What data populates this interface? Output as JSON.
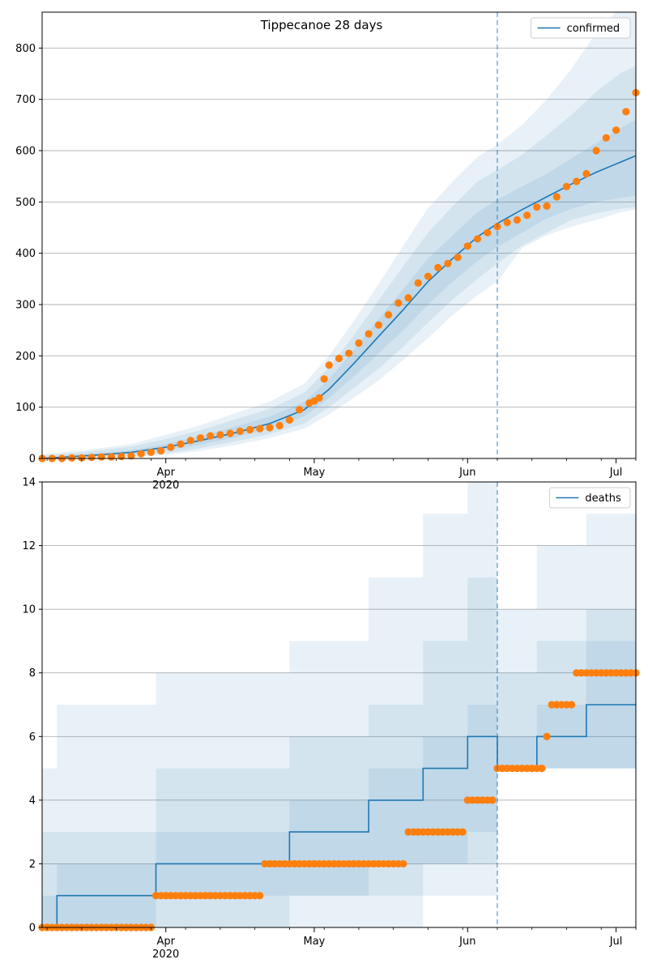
{
  "chart_data": [
    {
      "type": "line",
      "title": "Tippecanoe 28 days",
      "xlabel": "",
      "ylabel": "",
      "ylim": [
        0,
        870
      ],
      "yticks": [
        0,
        100,
        200,
        300,
        400,
        500,
        600,
        700,
        800
      ],
      "grid": "y",
      "legend": {
        "position": "top-right",
        "entries": [
          "confirmed"
        ]
      },
      "forecast_start": "2020-06-07",
      "x_tick_labels": [
        {
          "date": "2020-04-01",
          "label": "Apr",
          "sublabel": "2020"
        },
        {
          "date": "2020-05-01",
          "label": "May",
          "sublabel": ""
        },
        {
          "date": "2020-06-01",
          "label": "Jun",
          "sublabel": ""
        },
        {
          "date": "2020-07-01",
          "label": "Jul",
          "sublabel": ""
        }
      ],
      "series": [
        {
          "name": "confirmed",
          "style": "line",
          "dates": [
            "2020-03-07",
            "2020-03-17",
            "2020-03-25",
            "2020-04-01",
            "2020-04-08",
            "2020-04-15",
            "2020-04-22",
            "2020-04-29",
            "2020-05-04",
            "2020-05-09",
            "2020-05-14",
            "2020-05-19",
            "2020-05-24",
            "2020-05-29",
            "2020-06-03",
            "2020-06-07",
            "2020-06-12",
            "2020-06-17",
            "2020-06-22",
            "2020-06-27",
            "2020-07-02",
            "2020-07-05"
          ],
          "values": [
            0,
            6,
            12,
            22,
            35,
            50,
            68,
            95,
            135,
            185,
            238,
            290,
            345,
            390,
            432,
            458,
            485,
            510,
            535,
            558,
            578,
            590
          ],
          "bands": [
            {
              "lower": [
                0,
                4,
                8,
                16,
                27,
                41,
                58,
                82,
                118,
                160,
                205,
                250,
                300,
                345,
                385,
                412,
                440,
                468,
                487,
                500,
                508,
                512
              ],
              "upper": [
                2,
                9,
                16,
                28,
                44,
                62,
                82,
                110,
                155,
                212,
                272,
                330,
                390,
                435,
                480,
                505,
                530,
                555,
                585,
                615,
                645,
                660
              ]
            },
            {
              "lower": [
                0,
                2,
                5,
                10,
                20,
                33,
                48,
                68,
                100,
                137,
                175,
                218,
                265,
                310,
                350,
                380,
                415,
                440,
                465,
                478,
                487,
                490
              ],
              "upper": [
                5,
                14,
                23,
                38,
                55,
                76,
                97,
                128,
                178,
                240,
                308,
                375,
                440,
                492,
                540,
                562,
                592,
                630,
                670,
                715,
                752,
                765
              ]
            },
            {
              "lower": [
                0,
                1,
                3,
                7,
                15,
                26,
                40,
                58,
                86,
                118,
                152,
                192,
                235,
                280,
                318,
                345,
                410,
                435,
                452,
                465,
                480,
                485
              ],
              "upper": [
                8,
                18,
                28,
                46,
                65,
                88,
                111,
                146,
                200,
                268,
                340,
                415,
                488,
                540,
                588,
                612,
                650,
                700,
                760,
                830,
                880,
                900
              ]
            }
          ]
        },
        {
          "name": "",
          "style": "points",
          "color": "#ff7f0e",
          "dates": [
            "2020-03-07",
            "2020-03-09",
            "2020-03-11",
            "2020-03-13",
            "2020-03-15",
            "2020-03-17",
            "2020-03-19",
            "2020-03-21",
            "2020-03-23",
            "2020-03-25",
            "2020-03-27",
            "2020-03-29",
            "2020-03-31",
            "2020-04-02",
            "2020-04-04",
            "2020-04-06",
            "2020-04-08",
            "2020-04-10",
            "2020-04-12",
            "2020-04-14",
            "2020-04-16",
            "2020-04-18",
            "2020-04-20",
            "2020-04-22",
            "2020-04-24",
            "2020-04-26",
            "2020-04-28",
            "2020-04-30",
            "2020-05-01",
            "2020-05-02",
            "2020-05-03",
            "2020-05-04",
            "2020-05-06",
            "2020-05-08",
            "2020-05-10",
            "2020-05-12",
            "2020-05-14",
            "2020-05-16",
            "2020-05-18",
            "2020-05-20",
            "2020-05-22",
            "2020-05-24",
            "2020-05-26",
            "2020-05-28",
            "2020-05-30",
            "2020-06-01",
            "2020-06-03",
            "2020-06-05",
            "2020-06-07",
            "2020-06-09",
            "2020-06-11",
            "2020-06-13",
            "2020-06-15",
            "2020-06-17",
            "2020-06-19",
            "2020-06-21",
            "2020-06-23",
            "2020-06-25",
            "2020-06-27",
            "2020-06-29",
            "2020-07-01",
            "2020-07-03",
            "2020-07-05"
          ],
          "values": [
            0,
            0,
            0,
            1,
            1,
            2,
            3,
            3,
            4,
            5,
            9,
            12,
            15,
            22,
            28,
            35,
            40,
            44,
            46,
            49,
            53,
            56,
            58,
            60,
            64,
            75,
            95,
            108,
            112,
            118,
            155,
            182,
            195,
            205,
            225,
            243,
            260,
            280,
            303,
            313,
            342,
            355,
            372,
            380,
            392,
            414,
            428,
            440,
            452,
            460,
            465,
            474,
            490,
            492,
            510,
            530,
            540,
            555,
            600,
            625,
            640,
            676,
            713
          ]
        }
      ]
    },
    {
      "type": "line",
      "title": "",
      "xlabel": "",
      "ylabel": "",
      "ylim": [
        0,
        14
      ],
      "yticks": [
        0,
        2,
        4,
        6,
        8,
        10,
        12,
        14
      ],
      "grid": "y",
      "legend": {
        "position": "top-right",
        "entries": [
          "deaths"
        ]
      },
      "forecast_start": "2020-06-07",
      "x_tick_labels": [
        {
          "date": "2020-04-01",
          "label": "Apr",
          "sublabel": "2020"
        },
        {
          "date": "2020-05-01",
          "label": "May",
          "sublabel": ""
        },
        {
          "date": "2020-06-01",
          "label": "Jun",
          "sublabel": ""
        },
        {
          "date": "2020-07-01",
          "label": "Jul",
          "sublabel": ""
        }
      ],
      "series": [
        {
          "name": "deaths",
          "style": "step",
          "dates": [
            "2020-03-07",
            "2020-03-10",
            "2020-03-30",
            "2020-04-26",
            "2020-05-12",
            "2020-05-23",
            "2020-06-01",
            "2020-06-07",
            "2020-06-15",
            "2020-06-25",
            "2020-07-05"
          ],
          "values": [
            0,
            1,
            2,
            3,
            4,
            5,
            6,
            5,
            6,
            7,
            7
          ],
          "bands": [
            {
              "lower": [
                0,
                0,
                1,
                1,
                2,
                2,
                3,
                5,
                5,
                5,
                5
              ],
              "upper": [
                1,
                2,
                3,
                4,
                5,
                6,
                7,
                6,
                7,
                9,
                9
              ]
            },
            {
              "lower": [
                0,
                0,
                0,
                1,
                1,
                2,
                2,
                5,
                5,
                5,
                5
              ],
              "upper": [
                3,
                3,
                5,
                6,
                7,
                9,
                11,
                8,
                9,
                10,
                10
              ]
            },
            {
              "lower": [
                0,
                0,
                0,
                0,
                0,
                1,
                1,
                5,
                5,
                5,
                5
              ],
              "upper": [
                5,
                7,
                8,
                9,
                11,
                13,
                14,
                10,
                12,
                13,
                13
              ]
            }
          ]
        },
        {
          "name": "",
          "style": "points",
          "color": "#ff7f0e",
          "segments": [
            {
              "start": "2020-03-07",
              "end": "2020-03-29",
              "value": 0
            },
            {
              "start": "2020-03-30",
              "end": "2020-04-20",
              "value": 1
            },
            {
              "start": "2020-04-21",
              "end": "2020-05-19",
              "value": 2
            },
            {
              "start": "2020-05-20",
              "end": "2020-05-31",
              "value": 3
            },
            {
              "start": "2020-06-01",
              "end": "2020-06-06",
              "value": 4
            },
            {
              "start": "2020-06-07",
              "end": "2020-06-16",
              "value": 5
            },
            {
              "start": "2020-06-17",
              "end": "2020-06-17",
              "value": 6
            },
            {
              "start": "2020-06-18",
              "end": "2020-06-22",
              "value": 7
            },
            {
              "start": "2020-06-23",
              "end": "2020-07-05",
              "value": 8
            }
          ]
        }
      ]
    }
  ],
  "colors": {
    "line": "#1f77b4",
    "points": "#ff7f0e",
    "grid": "#b0b0b0"
  }
}
